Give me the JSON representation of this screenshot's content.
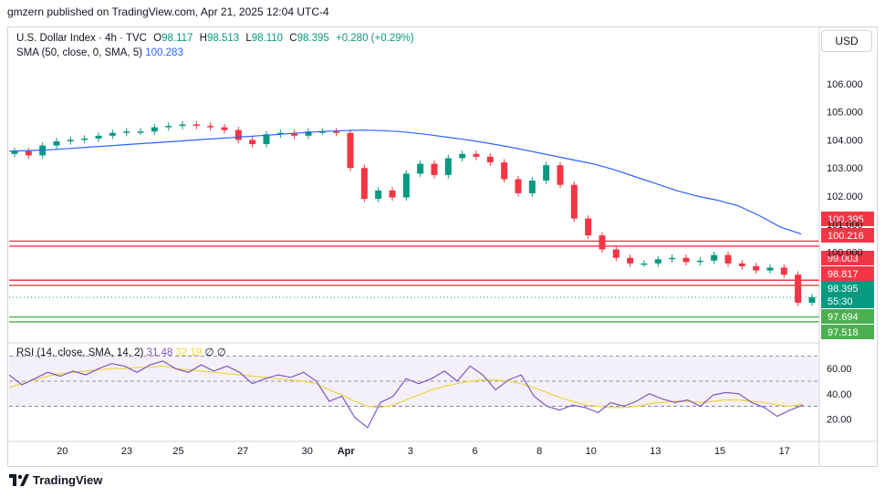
{
  "banner": "gmzern published on TradingView.com, Apr 21, 2025 12:04 UTC-4",
  "header": {
    "symbol": "U.S. Dollar Index · 4h · TVC",
    "o_label": "O",
    "o_value": "98.117",
    "h_label": "H",
    "h_value": "98.513",
    "l_label": "L",
    "l_value": "98.110",
    "c_label": "C",
    "c_value": "98.395",
    "change": "+0.280 (+0.29%)",
    "sma_label": "SMA (50, close, 0, SMA, 5)",
    "sma_value": "100.283",
    "rsi_label": "RSI (14, close, SMA, 14, 2)",
    "rsi_value": "31.48",
    "rsi_sma_value": "32.19",
    "rsi_extra": "∅ ∅"
  },
  "currency_button": "USD",
  "footer": {
    "brand": "TradingView"
  },
  "chart_data": {
    "type": "candlestick",
    "timeframe": "4h",
    "price_axis": {
      "ticks": [
        "106.000",
        "105.000",
        "104.000",
        "103.000",
        "102.000",
        "101.000",
        "100.000"
      ],
      "range": [
        96.9,
        107.1
      ]
    },
    "time_axis": {
      "labels": [
        "20",
        "23",
        "25",
        "27",
        "30",
        "Apr",
        "3",
        "6",
        "8",
        "10",
        "13",
        "15",
        "17"
      ]
    },
    "rsi_axis": {
      "ticks": [
        "60.00",
        "40.00",
        "20.00"
      ],
      "range": [
        5,
        79
      ],
      "band_upper": 70,
      "band_lower": 30,
      "mid": 50
    },
    "horizontal_levels": [
      {
        "label": "100.395",
        "value": 100.395,
        "color": "#f23645"
      },
      {
        "label": "100.216",
        "value": 100.216,
        "color": "#f23645"
      },
      {
        "label": "99.003",
        "value": 99.003,
        "color": "#f23645"
      },
      {
        "label": "98.817",
        "value": 98.817,
        "color": "#f23645"
      },
      {
        "label": "97.694",
        "value": 97.694,
        "color": "#4caf50"
      },
      {
        "label": "97.518",
        "value": 97.518,
        "color": "#4caf50"
      }
    ],
    "last_price": {
      "label": "98.395",
      "value": 98.395,
      "countdown": "55:30",
      "color": "#089981"
    },
    "sma_series": [
      103.6,
      103.62,
      103.65,
      103.7,
      103.75,
      103.8,
      103.85,
      103.9,
      103.95,
      104.0,
      104.05,
      104.1,
      104.15,
      104.2,
      104.25,
      104.3,
      104.33,
      104.35,
      104.33,
      104.28,
      104.2,
      104.1,
      104.0,
      103.88,
      103.75,
      103.6,
      103.45,
      103.3,
      103.15,
      102.95,
      102.7,
      102.45,
      102.2,
      102.0,
      101.85,
      101.65,
      101.3,
      100.9,
      100.65
    ],
    "close_series": [
      103.6,
      103.45,
      103.8,
      103.95,
      104.0,
      104.05,
      104.15,
      104.25,
      104.3,
      104.3,
      104.45,
      104.5,
      104.55,
      104.5,
      104.45,
      104.35,
      104.0,
      103.85,
      104.2,
      104.25,
      104.15,
      104.3,
      104.3,
      104.25,
      103.0,
      101.9,
      102.2,
      101.95,
      102.8,
      103.15,
      102.75,
      103.35,
      103.5,
      103.4,
      103.2,
      102.6,
      102.1,
      102.55,
      103.1,
      102.4,
      101.2,
      100.6,
      100.1,
      99.8,
      99.6,
      99.6,
      99.75,
      99.8,
      99.65,
      99.7,
      99.9,
      99.6,
      99.5,
      99.35,
      99.45,
      99.2,
      98.2,
      98.4
    ],
    "rsi_series": [
      55,
      47,
      52,
      57,
      54,
      58,
      55,
      60,
      64,
      62,
      57,
      63,
      66,
      60,
      57,
      63,
      58,
      62,
      57,
      48,
      52,
      55,
      53,
      57,
      50,
      34,
      38,
      21,
      13,
      33,
      38,
      52,
      48,
      52,
      58,
      50,
      62,
      55,
      43,
      51,
      55,
      38,
      30,
      27,
      31,
      29,
      25,
      33,
      30,
      34,
      40,
      36,
      33,
      35,
      30,
      39,
      41,
      40,
      33,
      29,
      22,
      27,
      31
    ],
    "rsi_sma_series": [
      45,
      48,
      51,
      54,
      56,
      57,
      58,
      59,
      60,
      60,
      61,
      61,
      62,
      60,
      59,
      58,
      57,
      56,
      55,
      54,
      53,
      52,
      51,
      50,
      48,
      43,
      39,
      34,
      30,
      29,
      31,
      35,
      39,
      43,
      46,
      48,
      50,
      51,
      51,
      50,
      48,
      45,
      41,
      37,
      34,
      31,
      30,
      29,
      29,
      30,
      32,
      33,
      34,
      34,
      33,
      34,
      35,
      35,
      34,
      33,
      31,
      30,
      32
    ]
  }
}
